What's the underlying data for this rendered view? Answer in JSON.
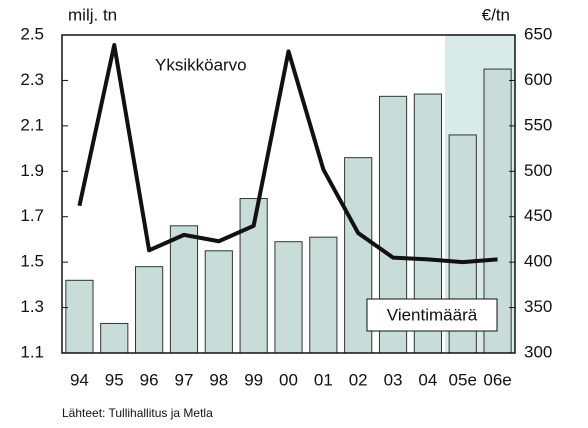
{
  "chart_data": {
    "type": "bar_line",
    "categories": [
      "94",
      "95",
      "96",
      "97",
      "98",
      "99",
      "00",
      "01",
      "02",
      "03",
      "04",
      "05e",
      "06e"
    ],
    "series": [
      {
        "name": "Vientimäärä",
        "type": "bar",
        "color": "#c8ddd8",
        "values": [
          1.42,
          1.23,
          1.48,
          1.66,
          1.55,
          1.78,
          1.59,
          1.61,
          1.96,
          2.23,
          2.24,
          2.06,
          2.35
        ]
      },
      {
        "name": "Yksikköarvo",
        "type": "line",
        "axis": "y2",
        "color": "#111111",
        "values": [
          462,
          639,
          413,
          430,
          423,
          440,
          632,
          502,
          432,
          405,
          403,
          400,
          403
        ]
      }
    ],
    "ylabel": "milj. tn",
    "y2label": "€/tn",
    "ylim": [
      1.1,
      2.5
    ],
    "yticks": [
      1.1,
      1.3,
      1.5,
      1.7,
      1.9,
      2.1,
      2.3,
      2.5
    ],
    "y2lim": [
      300,
      650
    ],
    "y2ticks": [
      300,
      350,
      400,
      450,
      500,
      550,
      600,
      650
    ],
    "source": "Lähteet: Tullihallitus ja Metla"
  }
}
